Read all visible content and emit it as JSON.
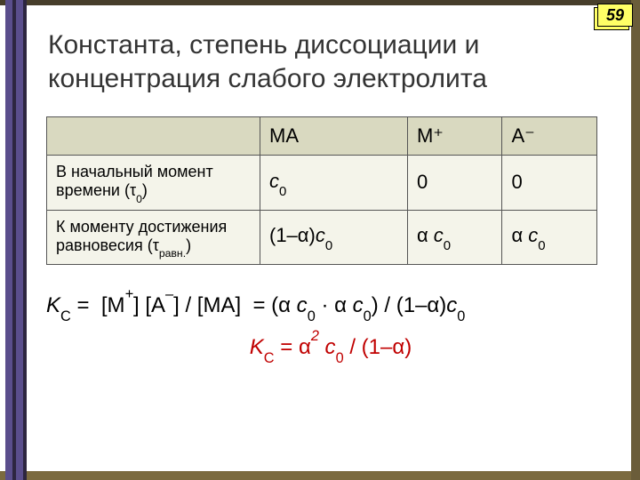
{
  "page_number": "59",
  "colors": {
    "stripe_purple": "#5a4e8c",
    "stripe_dark": "#2d2640",
    "right_stripe": "#6b5d3a",
    "top_bar": "#473e2b",
    "bottom_bar": "#7b6a3f",
    "badge_bg": "#ffff66",
    "title_color": "#333333",
    "table_header_bg": "#d9d9c0",
    "table_body_bg": "#f4f4ea",
    "eq2_color": "#c00000"
  },
  "title": "Константа, степень диссоциации и концентрация слабого электролита",
  "table": {
    "headers": [
      "",
      "MA",
      "M⁺",
      "A⁻"
    ],
    "rows": [
      {
        "label_html": "В начальный момент времени (τ<sub>0</sub>)",
        "c1_html": "<span>c</span><sub>0</sub>",
        "c2_html": "<span class='roman'>0</span>",
        "c3_html": "<span class='roman'>0</span>"
      },
      {
        "label_html": "К моменту достижения равновесия (τ<sub>равн.</sub>)",
        "c1_html": "<span class='roman'>(1–</span><span class='alpha'>α</span><span class='roman'>)</span>c<sub>0</sub>",
        "c2_html": "<span class='alpha'>α</span> c<sub>0</sub>",
        "c3_html": "<span class='alpha'>α</span> c<sub>0</sub>"
      }
    ]
  },
  "eq1_html": "K<sub>C</sub> <span class='roman'>=&nbsp; [M</span><sup>+</sup><span class='roman'>] [A</span><sup>–</sup><span class='roman'>] / [MA] &nbsp;= (</span><span class='alpha'>α</span> c<sub>0</sub> <span class='roman'>·</span> <span class='alpha'>α</span> c<sub>0</sub><span class='roman'>) / (1–</span><span class='alpha'>α</span><span class='roman'>)</span>c<sub>0</sub>",
  "eq2_html": "K<sub>C</sub> <span class='roman'>=</span> <span class='alpha'>α</span><sup>2</sup> c<sub>0</sub> <span class='roman'>/ (1–</span><span class='alpha'>α</span><span class='roman'>)</span>"
}
